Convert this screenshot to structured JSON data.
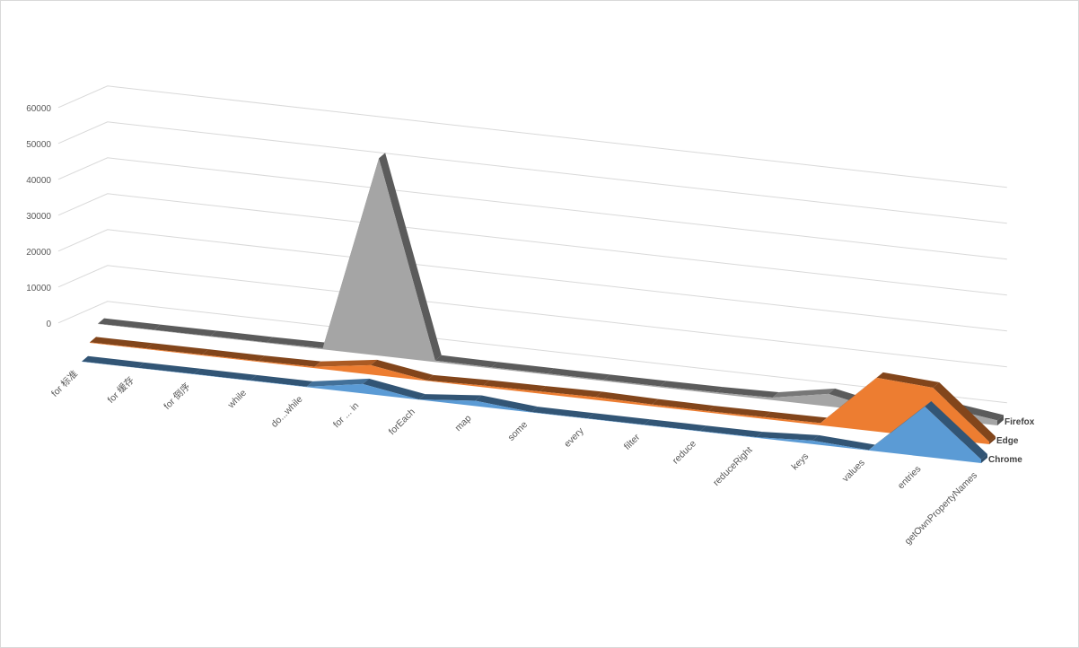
{
  "chart_data": {
    "type": "area",
    "variant": "3d-area",
    "title": "",
    "xlabel": "",
    "ylabel": "",
    "ylim": [
      0,
      60000
    ],
    "yticks": [
      0,
      10000,
      20000,
      30000,
      40000,
      50000,
      60000
    ],
    "grid": true,
    "categories": [
      "for 标准",
      "for 缓存",
      "for 倒序",
      "while",
      "do...while",
      "for ... in",
      "forEach",
      "map",
      "some",
      "every",
      "filter",
      "reduce",
      "reduceRight",
      "keys",
      "values",
      "entries",
      "getOwnPropertyNames"
    ],
    "series": [
      {
        "name": "Chrome",
        "color": "#5b9bd5",
        "values": [
          50,
          60,
          80,
          70,
          80,
          2600,
          60,
          1500,
          80,
          90,
          100,
          120,
          160,
          1000,
          80,
          14000,
          1000
        ]
      },
      {
        "name": "Edge",
        "color": "#ed7d31",
        "values": [
          150,
          200,
          250,
          250,
          400,
          2600,
          120,
          500,
          600,
          800,
          500,
          400,
          500,
          600,
          15000,
          14000,
          700
        ]
      },
      {
        "name": "Firefox",
        "color": "#a5a5a5",
        "values": [
          100,
          120,
          160,
          180,
          300,
          55000,
          400,
          300,
          300,
          300,
          300,
          400,
          700,
          3500,
          300,
          3500,
          1400
        ]
      }
    ]
  }
}
